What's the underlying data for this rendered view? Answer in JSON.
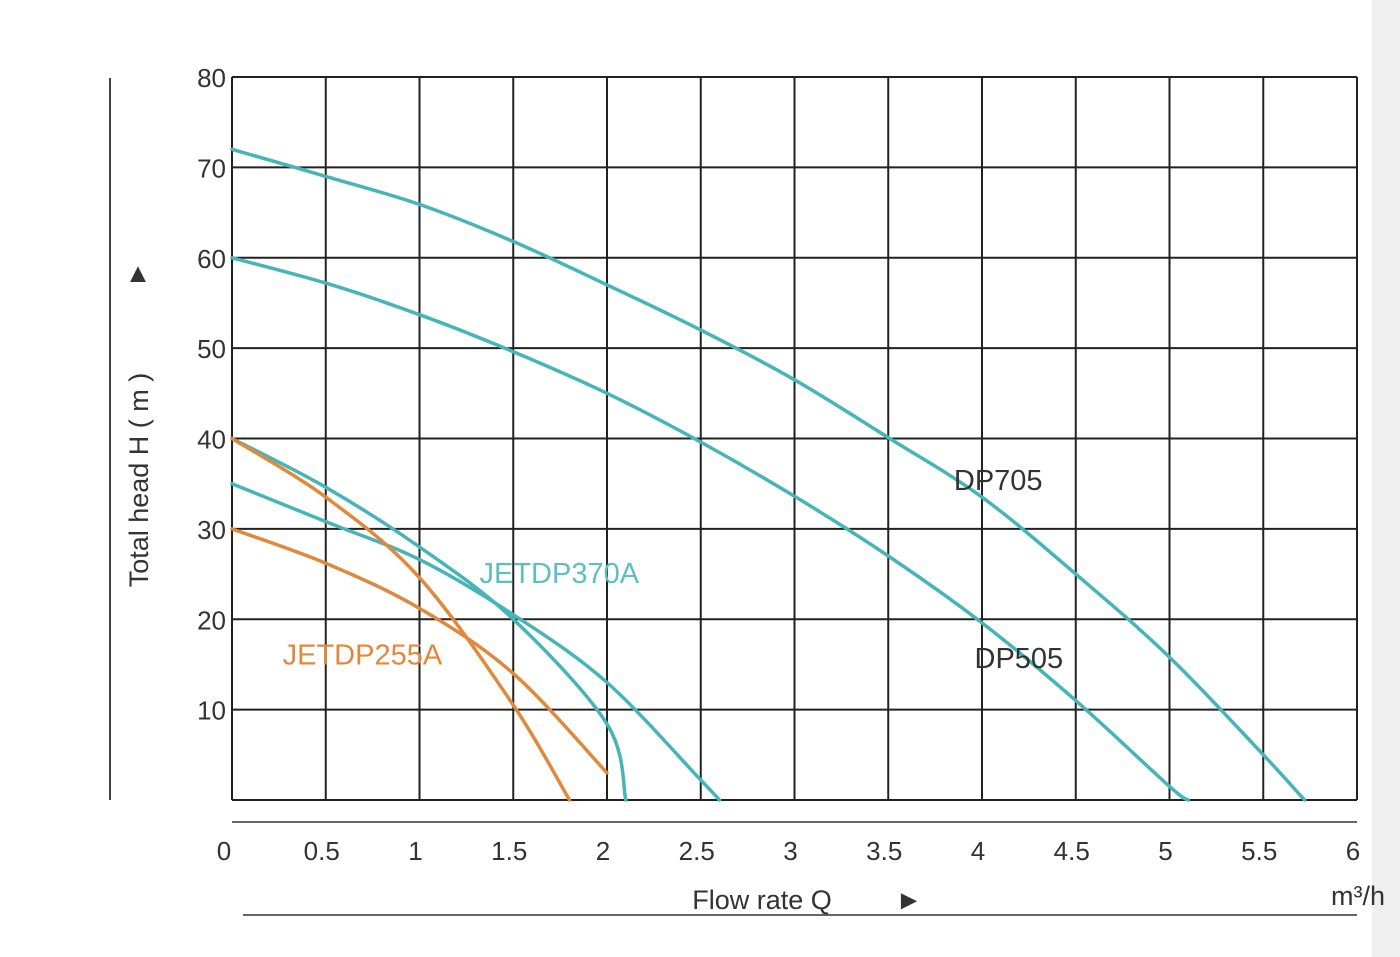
{
  "chart_data": {
    "type": "line",
    "xlabel": "Flow rate Q",
    "x_arrow": "►",
    "x_unit": "m³/h",
    "ylabel": "Total head H ( m )",
    "y_arrow": "▲",
    "xlim": [
      0,
      6
    ],
    "ylim": [
      0,
      80
    ],
    "x_ticks": [
      {
        "value": 0,
        "label": "0"
      },
      {
        "value": 0.5,
        "label": "0.5"
      },
      {
        "value": 1,
        "label": "1"
      },
      {
        "value": 1.5,
        "label": "1.5"
      },
      {
        "value": 2,
        "label": "2"
      },
      {
        "value": 2.5,
        "label": "2.5"
      },
      {
        "value": 3,
        "label": "3"
      },
      {
        "value": 3.5,
        "label": "3.5"
      },
      {
        "value": 4,
        "label": "4"
      },
      {
        "value": 4.5,
        "label": "4.5"
      },
      {
        "value": 5,
        "label": "5"
      },
      {
        "value": 5.5,
        "label": "5.5"
      },
      {
        "value": 6,
        "label": "6"
      }
    ],
    "y_ticks": [
      {
        "value": 10,
        "label": "10"
      },
      {
        "value": 20,
        "label": "20"
      },
      {
        "value": 30,
        "label": "30"
      },
      {
        "value": 40,
        "label": "40"
      },
      {
        "value": 50,
        "label": "50"
      },
      {
        "value": 60,
        "label": "60"
      },
      {
        "value": 70,
        "label": "70"
      },
      {
        "value": 80,
        "label": "80"
      }
    ],
    "grid": true,
    "colors": {
      "teal": "#46b5b8",
      "orange": "#e0893c",
      "grid": "#222222",
      "text": "#333333"
    },
    "series": [
      {
        "id": "dp705",
        "name": "DP705",
        "color": "#46b5b8",
        "label_color": "#333333",
        "label_at": [
          3.85,
          34.3
        ],
        "points": [
          [
            0,
            72
          ],
          [
            0.5,
            69
          ],
          [
            1,
            65.9
          ],
          [
            1.5,
            61.8
          ],
          [
            2,
            57
          ],
          [
            2.5,
            52
          ],
          [
            3,
            46.5
          ],
          [
            3.5,
            40.1
          ],
          [
            4,
            33.5
          ],
          [
            4.5,
            25
          ],
          [
            5,
            15.8
          ],
          [
            5.5,
            5
          ],
          [
            5.72,
            0
          ]
        ]
      },
      {
        "id": "dp505",
        "name": "DP505",
        "color": "#46b5b8",
        "label_color": "#333333",
        "label_at": [
          3.96,
          14.6
        ],
        "points": [
          [
            0,
            60
          ],
          [
            0.5,
            57.2
          ],
          [
            1,
            53.7
          ],
          [
            1.5,
            49.6
          ],
          [
            2,
            45
          ],
          [
            2.5,
            39.6
          ],
          [
            3,
            33.6
          ],
          [
            3.5,
            27
          ],
          [
            4,
            19.6
          ],
          [
            4.5,
            11
          ],
          [
            5,
            1.5
          ],
          [
            5.1,
            0
          ]
        ]
      },
      {
        "id": "jetdp370a-1",
        "name": "JETDP370A",
        "color": "#46b5b8",
        "label_color": "#5cbfc3",
        "label_at": [
          1.32,
          24
        ],
        "points": [
          [
            0,
            40
          ],
          [
            0.5,
            34.6
          ],
          [
            1,
            28
          ],
          [
            1.5,
            20
          ],
          [
            2,
            8.4
          ],
          [
            2.1,
            0
          ]
        ]
      },
      {
        "id": "jetdp370a-2",
        "name": "",
        "color": "#46b5b8",
        "points": [
          [
            0,
            35
          ],
          [
            0.5,
            30.8
          ],
          [
            1,
            26.6
          ],
          [
            1.5,
            20.5
          ],
          [
            2,
            13
          ],
          [
            2.5,
            2.2
          ],
          [
            2.6,
            0
          ]
        ]
      },
      {
        "id": "jetdp255a-1",
        "name": "JETDP255A",
        "color": "#e0893c",
        "label_color": "#e0893c",
        "label_at": [
          0.27,
          15
        ],
        "points": [
          [
            0,
            40
          ],
          [
            0.5,
            33.5
          ],
          [
            1,
            24.6
          ],
          [
            1.5,
            10.5
          ],
          [
            1.8,
            0
          ]
        ]
      },
      {
        "id": "jetdp255a-2",
        "name": "",
        "color": "#e0893c",
        "points": [
          [
            0,
            30
          ],
          [
            0.5,
            26.2
          ],
          [
            1,
            21.2
          ],
          [
            1.5,
            14
          ],
          [
            2,
            3
          ]
        ]
      }
    ]
  }
}
